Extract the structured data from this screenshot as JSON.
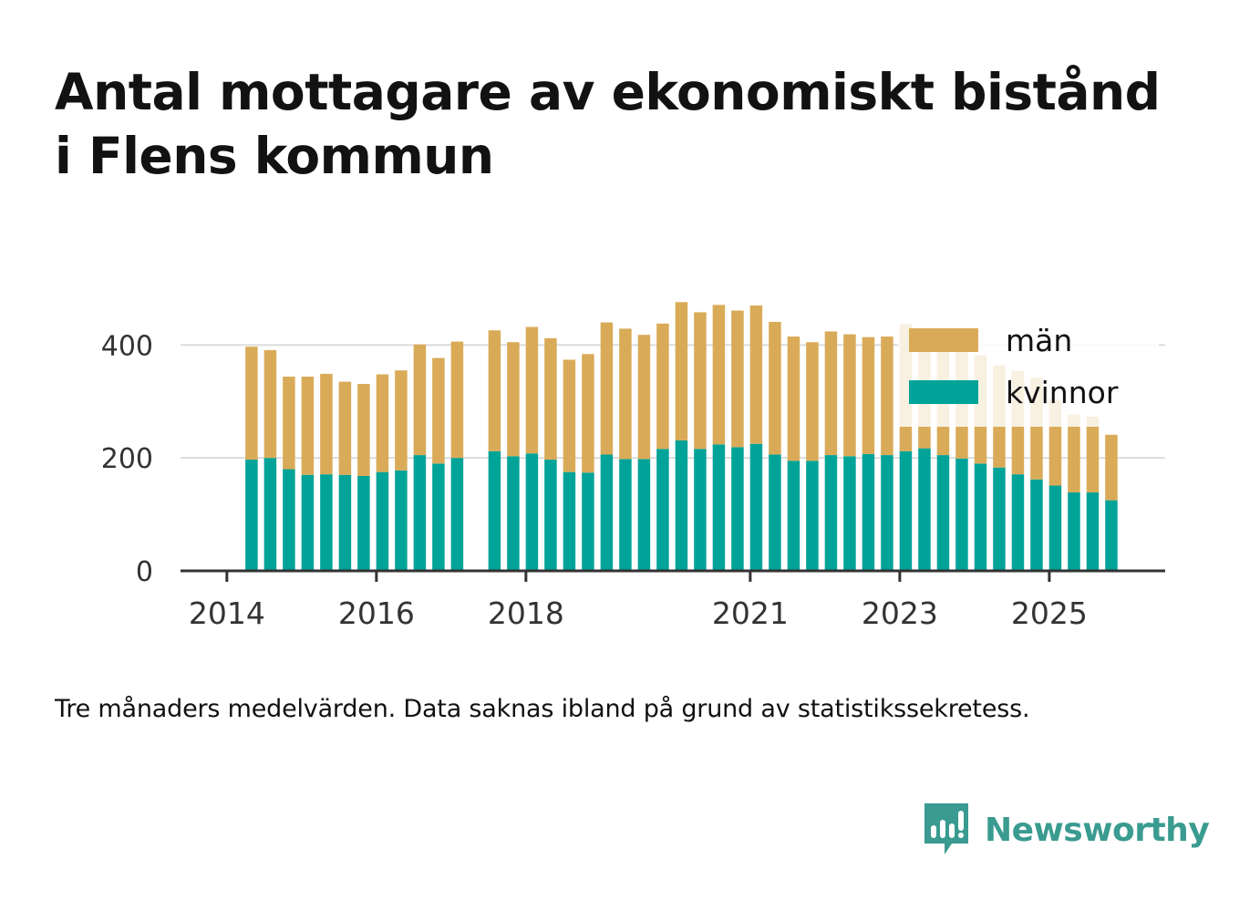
{
  "title": {
    "line1": "Antal mottagare av ekonomiskt bistånd",
    "line2": "i Flens kommun"
  },
  "caption": "Tre månaders medelvärden. Data saknas ibland på grund av statistikssekretess.",
  "brand": {
    "name": "Newsworthy",
    "icon": "newsworthy-logo-icon",
    "color": "#3a9b90"
  },
  "colors": {
    "man": "#d9ab58",
    "kvinnor": "#00a398",
    "grid": "#dcdcdc",
    "axis": "#333333"
  },
  "chart_data": {
    "type": "bar",
    "stacked": true,
    "x_tick_labels": [
      "2014",
      "2016",
      "2018",
      "2021",
      "2023",
      "2025"
    ],
    "x_tick_positions": [
      2014.0,
      2016.0,
      2018.0,
      2021.0,
      2023.0,
      2025.0
    ],
    "xlim": [
      2013.38,
      2026.55
    ],
    "ylim": [
      0,
      470
    ],
    "y_ticks": [
      0,
      200,
      400
    ],
    "gridlines": true,
    "legend": {
      "placement": "top-right",
      "entries": [
        "män",
        "kvinnor"
      ]
    },
    "x": [
      2014.33,
      2014.58,
      2014.83,
      2015.08,
      2015.33,
      2015.58,
      2015.83,
      2016.08,
      2016.33,
      2016.58,
      2016.83,
      2017.08,
      2017.58,
      2017.83,
      2018.08,
      2018.33,
      2018.58,
      2018.83,
      2019.08,
      2019.33,
      2019.58,
      2019.83,
      2020.08,
      2020.33,
      2020.58,
      2020.83,
      2021.08,
      2021.33,
      2021.58,
      2021.83,
      2022.08,
      2022.33,
      2022.58,
      2022.83,
      2023.08,
      2023.33,
      2023.58,
      2023.83,
      2024.08,
      2024.33,
      2024.58,
      2024.83,
      2025.08,
      2025.33,
      2025.58,
      2025.83
    ],
    "series": [
      {
        "name": "kvinnor",
        "values": [
          197,
          200,
          180,
          170,
          171,
          170,
          168,
          175,
          178,
          205,
          190,
          200,
          212,
          203,
          208,
          197,
          175,
          174,
          206,
          198,
          198,
          216,
          231,
          216,
          224,
          219,
          225,
          206,
          195,
          195,
          205,
          203,
          207,
          205,
          212,
          217,
          205,
          199,
          190,
          183,
          171,
          162,
          151,
          139,
          139,
          125
        ]
      },
      {
        "name": "män",
        "values": [
          200,
          191,
          164,
          174,
          178,
          165,
          163,
          173,
          177,
          196,
          187,
          206,
          214,
          202,
          224,
          215,
          199,
          210,
          234,
          231,
          220,
          222,
          245,
          242,
          247,
          242,
          245,
          235,
          220,
          210,
          219,
          216,
          207,
          210,
          225,
          212,
          213,
          202,
          192,
          181,
          183,
          180,
          152,
          138,
          134,
          116
        ]
      }
    ]
  }
}
